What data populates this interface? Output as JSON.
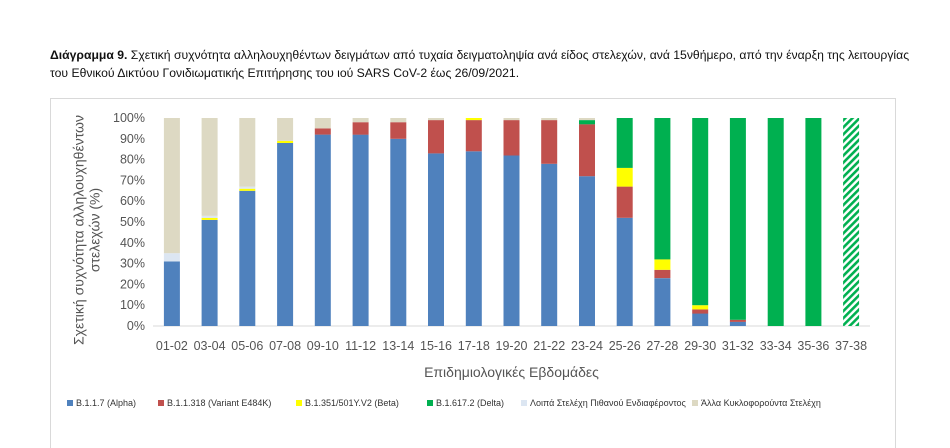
{
  "caption": {
    "lead": "Διάγραμμα 9.",
    "text": "Σχετική συχνότητα αλληλουχηθέντων δειγμάτων από τυχαία δειγματοληψία ανά είδος στελεχών, ανά 15νθήμερο, από την έναρξη της λειτουργίας του Εθνικού Δικτύου Γονιδιωματικής Επιτήρησης του ιού SARS CoV-2 έως 26/09/2021."
  },
  "chart_data": {
    "type": "bar",
    "stacked": true,
    "percent": true,
    "categories": [
      "01-02",
      "03-04",
      "05-06",
      "07-08",
      "09-10",
      "11-12",
      "13-14",
      "15-16",
      "17-18",
      "19-20",
      "21-22",
      "23-24",
      "25-26",
      "27-28",
      "29-30",
      "31-32",
      "33-34",
      "35-36",
      "37-38"
    ],
    "y_ticks": [
      "0%",
      "10%",
      "20%",
      "30%",
      "40%",
      "50%",
      "60%",
      "70%",
      "80%",
      "90%",
      "100%"
    ],
    "ylim": [
      0,
      100
    ],
    "xlabel": "Επιδημιολογικές Εβδομάδες",
    "ylabel": "Σχετική συχνότητα αλληλουχηθέντων στελεχών (%)",
    "grid": false,
    "legend_position": "bottom",
    "hatched_last_category": "37-38",
    "series": [
      {
        "name": "B.1.1.7 (Alpha)",
        "color": "#4f81bd",
        "values": [
          31,
          51,
          65,
          88,
          92,
          92,
          90,
          83,
          84,
          82,
          78,
          72,
          52,
          23,
          6,
          2,
          0,
          0,
          0
        ]
      },
      {
        "name": "B.1.1.318 (Variant E484K)",
        "color": "#c0504d",
        "values": [
          0,
          0,
          0,
          0,
          3,
          6,
          8,
          16,
          15,
          17,
          21,
          25,
          15,
          4,
          2,
          1,
          0,
          0,
          0
        ]
      },
      {
        "name": "B.1.351/501Y.V2 (Beta)",
        "color": "#ffff00",
        "values": [
          0,
          1,
          1,
          1,
          0,
          0,
          0,
          0,
          1,
          0,
          0,
          0,
          9,
          5,
          2,
          0,
          0,
          0,
          0
        ]
      },
      {
        "name": "B.1.617.2 (Delta)",
        "color": "#00b050",
        "values": [
          0,
          0,
          0,
          0,
          0,
          0,
          0,
          0,
          0,
          0,
          0,
          2,
          24,
          68,
          90,
          97,
          100,
          100,
          100
        ]
      },
      {
        "name": "Λοιπά Στελέχη Πιθανού Ενδιαφέροντος",
        "color": "#dce6f2",
        "values": [
          4,
          1,
          1,
          0,
          0,
          0,
          0,
          0,
          0,
          0,
          0,
          0,
          0,
          0,
          0,
          0,
          0,
          0,
          0
        ]
      },
      {
        "name": "Άλλα Κυκλοφορούντα Στελέχη",
        "color": "#ddd9c3",
        "values": [
          65,
          47,
          33,
          11,
          5,
          2,
          2,
          1,
          0,
          1,
          1,
          1,
          0,
          0,
          0,
          0,
          0,
          0,
          0
        ]
      }
    ]
  }
}
